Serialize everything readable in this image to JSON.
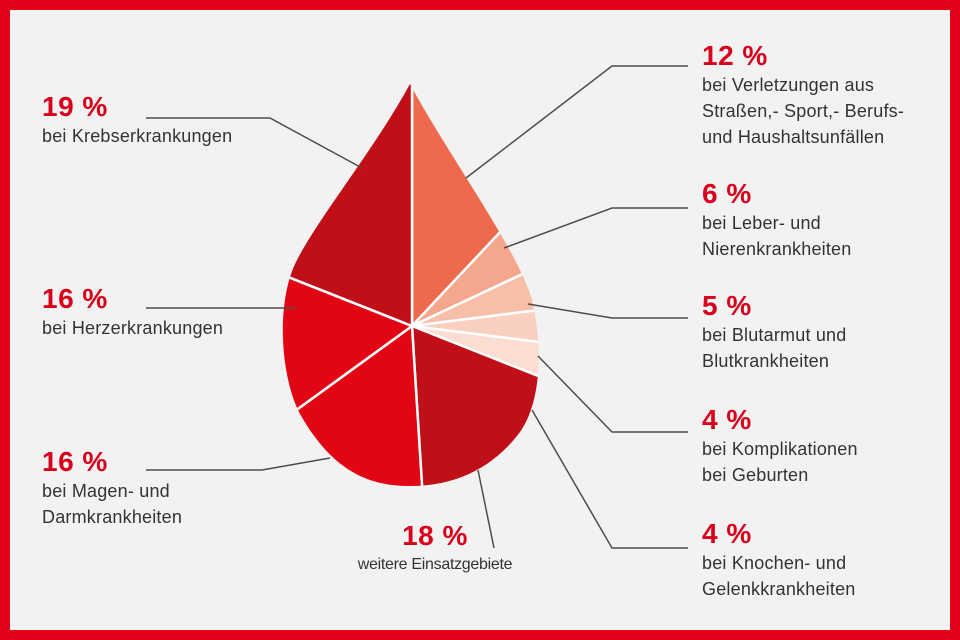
{
  "chart_data": {
    "type": "pie",
    "shape": "blood-drop",
    "title": "",
    "slices": [
      {
        "value": 12,
        "value_label": "12 %",
        "label": "bei Verletzungen aus\nStraßen,- Sport,- Berufs-\nund Haushaltsunfällen",
        "color": "#ee6a4e"
      },
      {
        "value": 6,
        "value_label": "6 %",
        "label": "bei Leber- und\nNierenkrankheiten",
        "color": "#f4a78c"
      },
      {
        "value": 5,
        "value_label": "5 %",
        "label": "bei Blutarmut und\nBlutkrankheiten",
        "color": "#f7bea8"
      },
      {
        "value": 4,
        "value_label": "4 %",
        "label": "bei Komplikationen\nbei Geburten",
        "color": "#f9cfc0"
      },
      {
        "value": 4,
        "value_label": "4 %",
        "label": "bei Knochen- und\nGelenkkrankheiten",
        "color": "#fbddd2"
      },
      {
        "value": 18,
        "value_label": "18 %",
        "label": "weitere Einsatzgebiete",
        "color": "#c00f17"
      },
      {
        "value": 16,
        "value_label": "16 %",
        "label": "bei Magen- und\nDarmkrankheiten",
        "color": "#e20615"
      },
      {
        "value": 16,
        "value_label": "16 %",
        "label": "bei Herzerkrankungen",
        "color": "#e20615"
      },
      {
        "value": 19,
        "value_label": "19 %",
        "label": "bei Krebserkrankungen",
        "color": "#c00f17"
      }
    ]
  },
  "colors": {
    "frame": "#e3001b",
    "background": "#f2f2f2",
    "value_text": "#d9001c",
    "text": "#333333",
    "leader": "#4d4d4d",
    "slice_border": "#ffffff"
  }
}
